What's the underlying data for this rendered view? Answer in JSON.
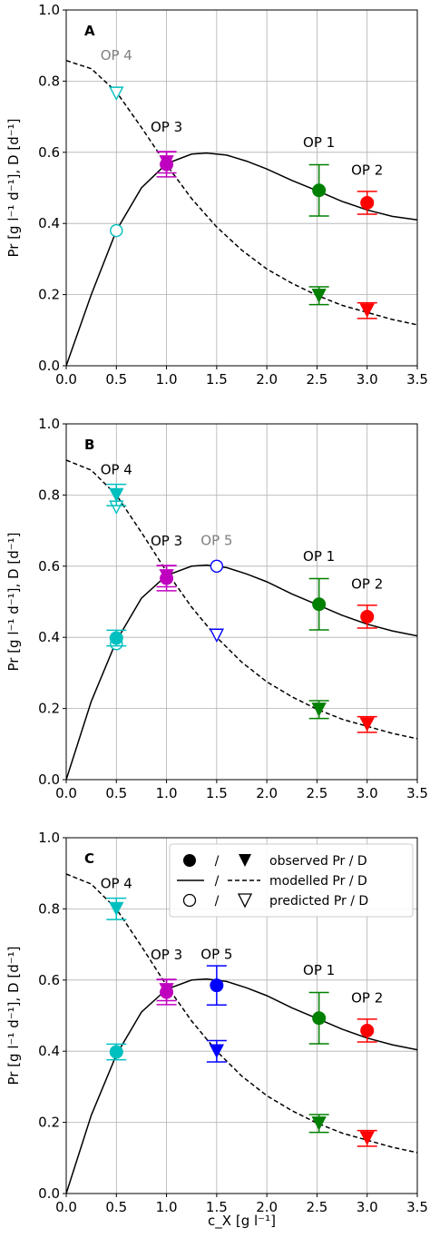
{
  "chart_data": {
    "type": "scatter",
    "shared": {
      "xlabel": "c_X  [g l⁻¹]",
      "ylabel": "Pr  [g l⁻¹ d⁻¹],  D  [d⁻¹]",
      "xlim": [
        0.0,
        3.5
      ],
      "ylim": [
        0.0,
        1.0
      ],
      "xticks": [
        "0.0",
        "0.5",
        "1.0",
        "1.5",
        "2.0",
        "2.5",
        "3.0",
        "3.5"
      ],
      "yticks": [
        "0.0",
        "0.2",
        "0.4",
        "0.6",
        "0.8",
        "1.0"
      ],
      "grid": true
    },
    "colors": {
      "OP1": "#008000",
      "OP2": "#ff0000",
      "OP3": "#bf00bf",
      "OP4": "#00bfbf",
      "OP5": "#0000ff",
      "predicted": "#808080"
    },
    "panels": [
      {
        "letter": "A",
        "pr_curve": {
          "cx": [
            0,
            0.25,
            0.5,
            0.75,
            1.0,
            1.25,
            1.4,
            1.6,
            1.8,
            2.0,
            2.25,
            2.5,
            2.75,
            3.0,
            3.25,
            3.5
          ],
          "pr": [
            0,
            0.2,
            0.38,
            0.5,
            0.568,
            0.595,
            0.598,
            0.592,
            0.575,
            0.553,
            0.521,
            0.492,
            0.462,
            0.438,
            0.42,
            0.41
          ]
        },
        "d_curve": {
          "cx": [
            0,
            0.25,
            0.5,
            0.75,
            1.0,
            1.25,
            1.5,
            1.75,
            2.0,
            2.25,
            2.5,
            2.75,
            3.0,
            3.25,
            3.5
          ],
          "d": [
            0.858,
            0.835,
            0.77,
            0.67,
            0.565,
            0.47,
            0.39,
            0.325,
            0.272,
            0.232,
            0.198,
            0.17,
            0.15,
            0.13,
            0.115
          ]
        },
        "points": [
          {
            "op": "OP 1",
            "cx": 2.52,
            "pr": 0.493,
            "pr_err": 0.072,
            "d": 0.197,
            "d_err": 0.025,
            "kind": "observed",
            "label_cx": 2.52,
            "label_y": 0.615
          },
          {
            "op": "OP 2",
            "cx": 3.0,
            "pr": 0.458,
            "pr_err": 0.032,
            "d": 0.155,
            "d_err": 0.022,
            "kind": "observed",
            "label_cx": 3.0,
            "label_y": 0.537
          },
          {
            "op": "OP 3",
            "cx": 1.0,
            "pr": 0.566,
            "pr_err": 0.035,
            "d": 0.572,
            "d_err": 0.03,
            "kind": "observed",
            "label_cx": 1.0,
            "label_y": 0.658
          },
          {
            "op": "OP 4",
            "cx": 0.5,
            "pr": 0.38,
            "pr_err": 0,
            "d": 0.765,
            "d_err": 0,
            "kind": "predicted",
            "label_cx": 0.5,
            "label_y": 0.86
          }
        ],
        "legend": null
      },
      {
        "letter": "B",
        "pr_curve": {
          "cx": [
            0,
            0.25,
            0.5,
            0.75,
            1.0,
            1.25,
            1.4,
            1.6,
            1.8,
            2.0,
            2.25,
            2.5,
            2.75,
            3.0,
            3.25,
            3.5
          ],
          "pr": [
            0,
            0.22,
            0.39,
            0.51,
            0.574,
            0.6,
            0.603,
            0.596,
            0.578,
            0.556,
            0.522,
            0.492,
            0.462,
            0.437,
            0.418,
            0.404
          ]
        },
        "d_curve": {
          "cx": [
            0,
            0.25,
            0.5,
            0.75,
            1.0,
            1.25,
            1.5,
            1.75,
            2.0,
            2.25,
            2.5,
            2.75,
            3.0,
            3.25,
            3.5
          ],
          "d": [
            0.898,
            0.87,
            0.8,
            0.695,
            0.585,
            0.485,
            0.4,
            0.33,
            0.275,
            0.233,
            0.198,
            0.17,
            0.15,
            0.13,
            0.115
          ]
        },
        "points": [
          {
            "op": "OP 1",
            "cx": 2.52,
            "pr": 0.493,
            "pr_err": 0.072,
            "d": 0.197,
            "d_err": 0.025,
            "kind": "observed",
            "label_cx": 2.52,
            "label_y": 0.615
          },
          {
            "op": "OP 2",
            "cx": 3.0,
            "pr": 0.458,
            "pr_err": 0.032,
            "d": 0.155,
            "d_err": 0.022,
            "kind": "observed",
            "label_cx": 3.0,
            "label_y": 0.537
          },
          {
            "op": "OP 3",
            "cx": 1.0,
            "pr": 0.566,
            "pr_err": 0.035,
            "d": 0.572,
            "d_err": 0.03,
            "kind": "observed",
            "label_cx": 1.0,
            "label_y": 0.658
          },
          {
            "op": "OP 4",
            "cx": 0.5,
            "pr": 0.398,
            "pr_err": 0.022,
            "d": 0.8,
            "d_err": 0.03,
            "kind": "observed",
            "pred_pr": 0.382,
            "pred_d": 0.765,
            "label_cx": 0.5,
            "label_y": 0.858
          },
          {
            "op": "OP 5",
            "cx": 1.5,
            "pr": 0.6,
            "pr_err": 0,
            "d": 0.405,
            "d_err": 0,
            "kind": "predicted",
            "label_cx": 1.5,
            "label_y": 0.66
          }
        ],
        "legend": null
      },
      {
        "letter": "C",
        "pr_curve": {
          "cx": [
            0,
            0.25,
            0.5,
            0.75,
            1.0,
            1.25,
            1.4,
            1.6,
            1.8,
            2.0,
            2.25,
            2.5,
            2.75,
            3.0,
            3.25,
            3.5
          ],
          "pr": [
            0,
            0.22,
            0.39,
            0.51,
            0.574,
            0.6,
            0.603,
            0.596,
            0.578,
            0.556,
            0.522,
            0.492,
            0.462,
            0.437,
            0.418,
            0.404
          ]
        },
        "d_curve": {
          "cx": [
            0,
            0.25,
            0.5,
            0.75,
            1.0,
            1.25,
            1.5,
            1.75,
            2.0,
            2.25,
            2.5,
            2.75,
            3.0,
            3.25,
            3.5
          ],
          "d": [
            0.898,
            0.87,
            0.8,
            0.695,
            0.585,
            0.485,
            0.4,
            0.33,
            0.275,
            0.233,
            0.198,
            0.17,
            0.15,
            0.13,
            0.115
          ]
        },
        "points": [
          {
            "op": "OP 1",
            "cx": 2.52,
            "pr": 0.493,
            "pr_err": 0.072,
            "d": 0.197,
            "d_err": 0.025,
            "kind": "observed",
            "label_cx": 2.52,
            "label_y": 0.615
          },
          {
            "op": "OP 2",
            "cx": 3.0,
            "pr": 0.458,
            "pr_err": 0.032,
            "d": 0.155,
            "d_err": 0.022,
            "kind": "observed",
            "label_cx": 3.0,
            "label_y": 0.537
          },
          {
            "op": "OP 3",
            "cx": 1.0,
            "pr": 0.566,
            "pr_err": 0.035,
            "d": 0.572,
            "d_err": 0.03,
            "kind": "observed",
            "label_cx": 1.0,
            "label_y": 0.658
          },
          {
            "op": "OP 4",
            "cx": 0.5,
            "pr": 0.398,
            "pr_err": 0.022,
            "d": 0.8,
            "d_err": 0.03,
            "kind": "observed",
            "label_cx": 0.5,
            "label_y": 0.858
          },
          {
            "op": "OP 5",
            "cx": 1.5,
            "pr": 0.585,
            "pr_err": 0.055,
            "d": 0.4,
            "d_err": 0.03,
            "kind": "observed",
            "label_cx": 1.5,
            "label_y": 0.66
          }
        ],
        "legend": {
          "rows": [
            {
              "symbols": "filled-circle / filled-triangle",
              "sep": "/",
              "text": "observed   Pr / D"
            },
            {
              "symbols": "solid-line / dashed-line",
              "sep": "/",
              "text": "modelled   Pr / D"
            },
            {
              "symbols": "open-circle / open-triangle",
              "sep": "/",
              "text": "predicted  Pr / D"
            }
          ]
        }
      }
    ]
  }
}
